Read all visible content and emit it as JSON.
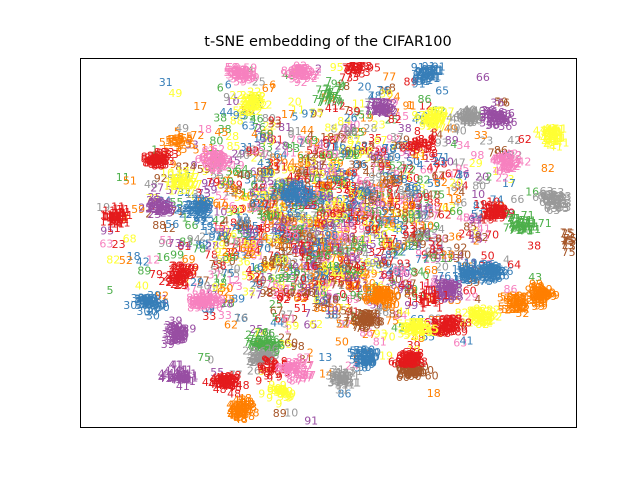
{
  "chart_data": {
    "type": "scatter",
    "title": "t-SNE embedding of the CIFAR100",
    "xlabel": "",
    "ylabel": "",
    "xlim": [
      0,
      1
    ],
    "ylim": [
      0,
      1
    ],
    "x_ticks": [],
    "y_ticks": [],
    "grid": false,
    "legend": "none",
    "marker": "class label number (0-99) drawn as text",
    "palette": [
      "#e41a1c",
      "#377eb8",
      "#4daf4a",
      "#984ea3",
      "#ff7f00",
      "#ffff33",
      "#a65628",
      "#f781bf",
      "#999999"
    ],
    "clusters": [
      {
        "label": "73",
        "x": 0.555,
        "y": 0.985,
        "color": "#e41a1c"
      },
      {
        "label": "91",
        "x": 0.695,
        "y": 0.965,
        "color": "#377eb8"
      },
      {
        "label": "59",
        "x": 0.32,
        "y": 0.965,
        "color": "#f781bf"
      },
      {
        "label": "92",
        "x": 0.445,
        "y": 0.965,
        "color": "#f781bf"
      },
      {
        "label": "7",
        "x": 0.505,
        "y": 0.9,
        "color": "#4daf4a"
      },
      {
        "label": "22",
        "x": 0.345,
        "y": 0.88,
        "color": "#ffff33"
      },
      {
        "label": "72",
        "x": 0.61,
        "y": 0.87,
        "color": "#984ea3"
      },
      {
        "label": "97",
        "x": 0.715,
        "y": 0.835,
        "color": "#ffff33"
      },
      {
        "label": "40",
        "x": 0.78,
        "y": 0.84,
        "color": "#999999"
      },
      {
        "label": "36",
        "x": 0.84,
        "y": 0.84,
        "color": "#984ea3"
      },
      {
        "label": "41",
        "x": 0.955,
        "y": 0.795,
        "color": "#ffff33"
      },
      {
        "label": "5",
        "x": 0.2,
        "y": 0.775,
        "color": "#ff7f00"
      },
      {
        "label": "83",
        "x": 0.155,
        "y": 0.73,
        "color": "#e41a1c"
      },
      {
        "label": "62",
        "x": 0.275,
        "y": 0.73,
        "color": "#f781bf"
      },
      {
        "label": "8",
        "x": 0.69,
        "y": 0.77,
        "color": "#e41a1c"
      },
      {
        "label": "42",
        "x": 0.86,
        "y": 0.72,
        "color": "#f781bf"
      },
      {
        "label": "17",
        "x": 0.205,
        "y": 0.665,
        "color": "#ffff33"
      },
      {
        "label": "63",
        "x": 0.955,
        "y": 0.62,
        "color": "#999999"
      },
      {
        "label": "61",
        "x": 0.43,
        "y": 0.635,
        "color": "#377eb8"
      },
      {
        "label": "11",
        "x": 0.07,
        "y": 0.575,
        "color": "#e41a1c"
      },
      {
        "label": "22",
        "x": 0.24,
        "y": 0.6,
        "color": "#377eb8"
      },
      {
        "label": "25",
        "x": 0.16,
        "y": 0.6,
        "color": "#984ea3"
      },
      {
        "label": "19",
        "x": 0.835,
        "y": 0.585,
        "color": "#e41a1c"
      },
      {
        "label": "71",
        "x": 0.89,
        "y": 0.555,
        "color": "#4daf4a"
      },
      {
        "label": "75",
        "x": 0.995,
        "y": 0.505,
        "color": "#a65628"
      },
      {
        "label": "29",
        "x": 0.2,
        "y": 0.415,
        "color": "#e41a1c"
      },
      {
        "label": "19",
        "x": 0.785,
        "y": 0.42,
        "color": "#377eb8"
      },
      {
        "label": "26",
        "x": 0.83,
        "y": 0.42,
        "color": "#377eb8"
      },
      {
        "label": "30",
        "x": 0.14,
        "y": 0.335,
        "color": "#377eb8"
      },
      {
        "label": "89",
        "x": 0.25,
        "y": 0.34,
        "color": "#f781bf"
      },
      {
        "label": "38",
        "x": 0.74,
        "y": 0.375,
        "color": "#984ea3"
      },
      {
        "label": "1",
        "x": 0.705,
        "y": 0.355,
        "color": "#e41a1c"
      },
      {
        "label": "52",
        "x": 0.88,
        "y": 0.34,
        "color": "#ff7f00"
      },
      {
        "label": "99",
        "x": 0.93,
        "y": 0.36,
        "color": "#ff7f00"
      },
      {
        "label": "82",
        "x": 0.81,
        "y": 0.3,
        "color": "#ffff33"
      },
      {
        "label": "60",
        "x": 0.605,
        "y": 0.355,
        "color": "#ff7f00"
      },
      {
        "label": "39",
        "x": 0.19,
        "y": 0.255,
        "color": "#984ea3"
      },
      {
        "label": "78",
        "x": 0.575,
        "y": 0.29,
        "color": "#a65628"
      },
      {
        "label": "68",
        "x": 0.74,
        "y": 0.27,
        "color": "#e41a1c"
      },
      {
        "label": "55",
        "x": 0.675,
        "y": 0.265,
        "color": "#ffff33"
      },
      {
        "label": "60",
        "x": 0.665,
        "y": 0.155,
        "color": "#a65628"
      },
      {
        "label": "68",
        "x": 0.66,
        "y": 0.185,
        "color": "#e41a1c"
      },
      {
        "label": "50",
        "x": 0.575,
        "y": 0.19,
        "color": "#377eb8"
      },
      {
        "label": "76",
        "x": 0.37,
        "y": 0.225,
        "color": "#4daf4a"
      },
      {
        "label": "26",
        "x": 0.37,
        "y": 0.19,
        "color": "#999999"
      },
      {
        "label": "9",
        "x": 0.39,
        "y": 0.165,
        "color": "#e41a1c"
      },
      {
        "label": "87",
        "x": 0.43,
        "y": 0.155,
        "color": "#f781bf"
      },
      {
        "label": "31",
        "x": 0.53,
        "y": 0.13,
        "color": "#999999"
      },
      {
        "label": "41",
        "x": 0.2,
        "y": 0.14,
        "color": "#984ea3"
      },
      {
        "label": "48",
        "x": 0.29,
        "y": 0.125,
        "color": "#e41a1c"
      },
      {
        "label": "48",
        "x": 0.32,
        "y": 0.05,
        "color": "#ff7f00"
      },
      {
        "label": "9",
        "x": 0.405,
        "y": 0.095,
        "color": "#ffff33"
      }
    ]
  }
}
